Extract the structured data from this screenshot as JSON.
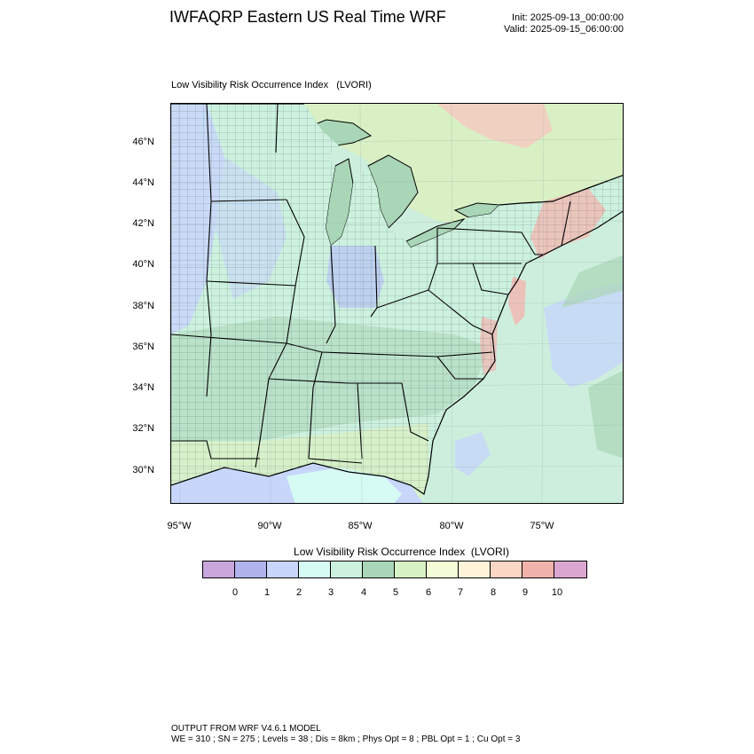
{
  "header": {
    "title": "IWFAQRP Eastern US Real Time WRF",
    "init": "Init: 2025-09-13_00:00:00",
    "valid": "Valid: 2025-09-15_06:00:00"
  },
  "map": {
    "subtitle": "Low Visibility Risk Occurrence Index   (LVORI)",
    "lat_labels": [
      "46°N",
      "44°N",
      "42°N",
      "40°N",
      "38°N",
      "36°N",
      "34°N",
      "32°N",
      "30°N"
    ],
    "lon_labels": [
      "95°W",
      "90°W",
      "85°W",
      "80°W",
      "75°W"
    ],
    "colors": {
      "water": "#b7c3f4",
      "land_low": "#cdeedd",
      "land_mid": "#a9d6b6",
      "land_high": "#d8f0c4",
      "warm": "#f4b5b0",
      "border": "#000000"
    }
  },
  "colorbar": {
    "label": "Low Visibility Risk Occurrence Index  (LVORI)",
    "colors": [
      "#c9a6dc",
      "#b1b3ec",
      "#c7d6fa",
      "#d5fbf4",
      "#ccf1df",
      "#a9d6b6",
      "#d8f1c5",
      "#f4fbd7",
      "#fff4d9",
      "#fcd6c4",
      "#f1b2ab",
      "#dba6cf"
    ],
    "ticks": [
      "0",
      "1",
      "2",
      "3",
      "4",
      "5",
      "6",
      "7",
      "8",
      "9",
      "10"
    ]
  },
  "footer": {
    "line1": "OUTPUT FROM WRF V4.6.1 MODEL",
    "line2": "WE = 310 ; SN = 275 ; Levels = 38 ; Dis = 8km ; Phys Opt = 8 ; PBL Opt = 1 ; Cu Opt = 3"
  }
}
